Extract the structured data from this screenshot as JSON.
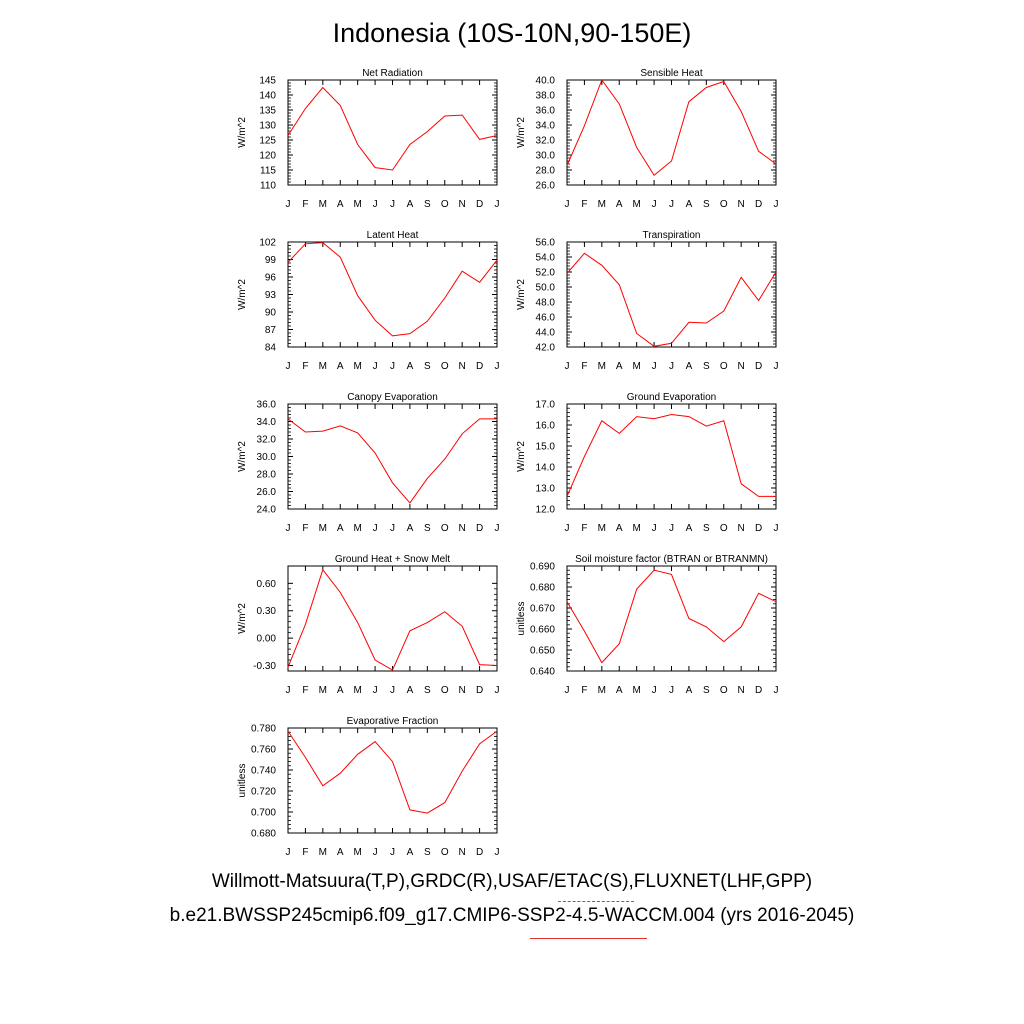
{
  "page": {
    "title": "Indonesia (10S-10N,90-150E)",
    "footer_obs": "Willmott-Matsuura(T,P),GRDC(R),USAF/ETAC(S),FLUXNET(LHF,GPP)",
    "footer_case": "b.e21.BWSSP245cmip6.f09_g17.CMIP6-SSP2-4.5-WACCM.004 (yrs 2016-2045)"
  },
  "colors": {
    "line": "#ff0000",
    "obs_dash": "#5b5bd6"
  },
  "chart_data": [
    {
      "type": "line",
      "title": "Net Radiation",
      "ylabel": "W/m^2",
      "categories": [
        "J",
        "F",
        "M",
        "A",
        "M",
        "J",
        "J",
        "A",
        "S",
        "O",
        "N",
        "D",
        "J"
      ],
      "ylim": [
        110,
        145
      ],
      "yticks": [
        "110",
        "115",
        "120",
        "125",
        "130",
        "135",
        "140",
        "145"
      ],
      "values": [
        126.5,
        135.5,
        142.5,
        136.5,
        123.5,
        115.8,
        115.0,
        123.5,
        127.8,
        133.0,
        133.3,
        125.2,
        126.5
      ]
    },
    {
      "type": "line",
      "title": "Sensible Heat",
      "ylabel": "W/m^2",
      "categories": [
        "J",
        "F",
        "M",
        "A",
        "M",
        "J",
        "J",
        "A",
        "S",
        "O",
        "N",
        "D",
        "J"
      ],
      "ylim": [
        26,
        40
      ],
      "yticks": [
        "26.0",
        "28.0",
        "30.0",
        "32.0",
        "34.0",
        "36.0",
        "38.0",
        "40.0"
      ],
      "values": [
        28.6,
        33.9,
        40.0,
        36.8,
        31.0,
        27.3,
        29.2,
        37.1,
        39.0,
        39.8,
        35.8,
        30.5,
        28.8
      ]
    },
    {
      "type": "line",
      "title": "Latent Heat",
      "ylabel": "W/m^2",
      "categories": [
        "J",
        "F",
        "M",
        "A",
        "M",
        "J",
        "J",
        "A",
        "S",
        "O",
        "N",
        "D",
        "J"
      ],
      "ylim": [
        84,
        102
      ],
      "yticks": [
        "84",
        "87",
        "90",
        "93",
        "96",
        "99",
        "102"
      ],
      "values": [
        98.5,
        101.7,
        101.9,
        99.4,
        92.8,
        88.6,
        85.9,
        86.3,
        88.4,
        92.4,
        97.0,
        95.1,
        98.9
      ]
    },
    {
      "type": "line",
      "title": "Transpiration",
      "ylabel": "W/m^2",
      "categories": [
        "J",
        "F",
        "M",
        "A",
        "M",
        "J",
        "J",
        "A",
        "S",
        "O",
        "N",
        "D",
        "J"
      ],
      "ylim": [
        42,
        56
      ],
      "yticks": [
        "42.0",
        "44.0",
        "46.0",
        "48.0",
        "50.0",
        "52.0",
        "54.0",
        "56.0"
      ],
      "values": [
        51.8,
        54.5,
        52.9,
        50.3,
        43.8,
        42.1,
        42.5,
        45.3,
        45.2,
        46.8,
        51.3,
        48.2,
        52.0
      ]
    },
    {
      "type": "line",
      "title": "Canopy Evaporation",
      "ylabel": "W/m^2",
      "categories": [
        "J",
        "F",
        "M",
        "A",
        "M",
        "J",
        "J",
        "A",
        "S",
        "O",
        "N",
        "D",
        "J"
      ],
      "ylim": [
        24,
        36
      ],
      "yticks": [
        "24.0",
        "26.0",
        "28.0",
        "30.0",
        "32.0",
        "34.0",
        "36.0"
      ],
      "values": [
        34.3,
        32.8,
        32.9,
        33.5,
        32.7,
        30.4,
        27.0,
        24.7,
        27.5,
        29.7,
        32.6,
        34.3,
        34.3
      ]
    },
    {
      "type": "line",
      "title": "Ground Evaporation",
      "ylabel": "W/m^2",
      "categories": [
        "J",
        "F",
        "M",
        "A",
        "M",
        "J",
        "J",
        "A",
        "S",
        "O",
        "N",
        "D",
        "J"
      ],
      "ylim": [
        12,
        17
      ],
      "yticks": [
        "12.0",
        "13.0",
        "14.0",
        "15.0",
        "16.0",
        "17.0"
      ],
      "values": [
        12.6,
        14.5,
        16.2,
        15.6,
        16.4,
        16.3,
        16.5,
        16.4,
        15.95,
        16.2,
        13.2,
        12.6,
        12.6
      ]
    },
    {
      "type": "line",
      "title": "Ground Heat + Snow Melt",
      "ylabel": "W/m^2",
      "categories": [
        "J",
        "F",
        "M",
        "A",
        "M",
        "J",
        "J",
        "A",
        "S",
        "O",
        "N",
        "D",
        "J"
      ],
      "ylim": [
        -0.36,
        0.79
      ],
      "yticks": [
        "-0.30",
        "0.00",
        "0.30",
        "0.60"
      ],
      "ytick_values": [
        -0.3,
        0.0,
        0.3,
        0.6
      ],
      "values": [
        -0.32,
        0.15,
        0.75,
        0.5,
        0.17,
        -0.24,
        -0.35,
        0.08,
        0.17,
        0.29,
        0.13,
        -0.29,
        -0.3
      ]
    },
    {
      "type": "line",
      "title": "Soil moisture factor (BTRAN or BTRANMN)",
      "ylabel": "unitless",
      "categories": [
        "J",
        "F",
        "M",
        "A",
        "M",
        "J",
        "J",
        "A",
        "S",
        "O",
        "N",
        "D",
        "J"
      ],
      "ylim": [
        0.64,
        0.69
      ],
      "yticks": [
        "0.640",
        "0.650",
        "0.660",
        "0.670",
        "0.680",
        "0.690"
      ],
      "values": [
        0.673,
        0.659,
        0.644,
        0.653,
        0.679,
        0.688,
        0.686,
        0.665,
        0.661,
        0.654,
        0.661,
        0.677,
        0.673
      ]
    },
    {
      "type": "line",
      "title": "Evaporative Fraction",
      "ylabel": "unitless",
      "categories": [
        "J",
        "F",
        "M",
        "A",
        "M",
        "J",
        "J",
        "A",
        "S",
        "O",
        "N",
        "D",
        "J"
      ],
      "ylim": [
        0.68,
        0.78
      ],
      "yticks": [
        "0.680",
        "0.700",
        "0.720",
        "0.740",
        "0.760",
        "0.780"
      ],
      "values": [
        0.777,
        0.752,
        0.725,
        0.737,
        0.755,
        0.767,
        0.748,
        0.702,
        0.699,
        0.709,
        0.739,
        0.765,
        0.777
      ]
    }
  ]
}
